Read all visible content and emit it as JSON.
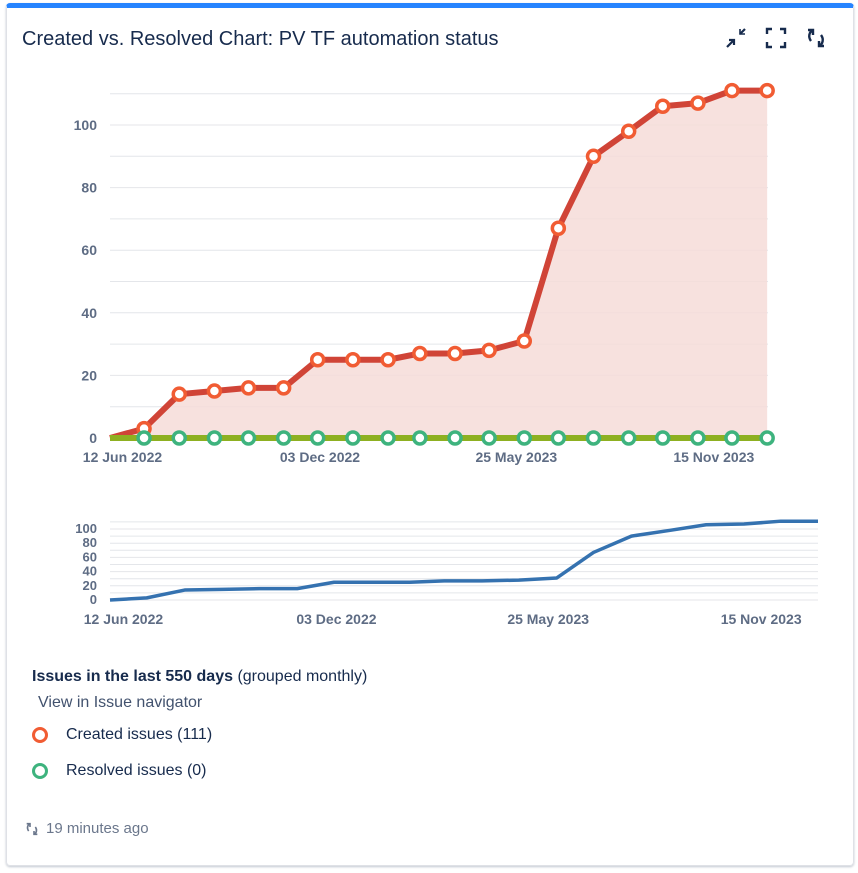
{
  "header": {
    "title": "Created vs. Resolved Chart: PV TF automation status",
    "icons": [
      "minimize-icon",
      "fullscreen-icon",
      "refresh-icon"
    ]
  },
  "colors": {
    "accent": "#2684ff",
    "created": "#d04437",
    "created_marker": "#f15c33",
    "created_fill": "#f6dcd8",
    "resolved_line": "#8eb021",
    "resolved_marker": "#3eb37e",
    "overview_line": "#3572b0"
  },
  "chart_data": [
    {
      "type": "area",
      "title": "",
      "xlabel": "",
      "ylabel": "",
      "ylim": [
        0,
        110
      ],
      "grid": true,
      "yticks": [
        0,
        20,
        40,
        60,
        80,
        100
      ],
      "xtick_labels": [
        "12 Jun 2022",
        "03 Dec 2022",
        "25 May 2023",
        "15 Nov 2023"
      ],
      "xtick_dates": [
        "2022-06-12",
        "2022-12-03",
        "2023-05-25",
        "2023-11-15"
      ],
      "x": [
        "2022-06-01",
        "2022-07-01",
        "2022-08-01",
        "2022-09-01",
        "2022-10-01",
        "2022-11-01",
        "2022-12-01",
        "2023-01-01",
        "2023-02-01",
        "2023-03-01",
        "2023-04-01",
        "2023-05-01",
        "2023-06-01",
        "2023-07-01",
        "2023-08-01",
        "2023-09-01",
        "2023-10-01",
        "2023-11-01",
        "2023-12-01",
        "2024-01-01"
      ],
      "series": [
        {
          "name": "Created issues",
          "values": [
            0,
            3,
            14,
            15,
            16,
            16,
            25,
            25,
            25,
            27,
            27,
            28,
            31,
            67,
            90,
            98,
            106,
            107,
            111,
            111
          ]
        },
        {
          "name": "Resolved issues",
          "values": [
            0,
            0,
            0,
            0,
            0,
            0,
            0,
            0,
            0,
            0,
            0,
            0,
            0,
            0,
            0,
            0,
            0,
            0,
            0,
            0
          ]
        }
      ]
    },
    {
      "type": "line",
      "title": "",
      "ylim": [
        0,
        110
      ],
      "grid": true,
      "yticks": [
        0,
        20,
        40,
        60,
        80,
        100
      ],
      "xtick_labels": [
        "12 Jun 2022",
        "03 Dec 2022",
        "25 May 2023",
        "15 Nov 2023"
      ],
      "note_series": "Created issues overview"
    }
  ],
  "legend": {
    "title_bold": "Issues in the last 550 days",
    "title_rest": " (grouped monthly)",
    "nav_link": "View in Issue navigator",
    "items": [
      {
        "label": "Created issues (111)"
      },
      {
        "label": "Resolved issues (0)"
      }
    ]
  },
  "footer": {
    "updated": "19 minutes ago"
  }
}
